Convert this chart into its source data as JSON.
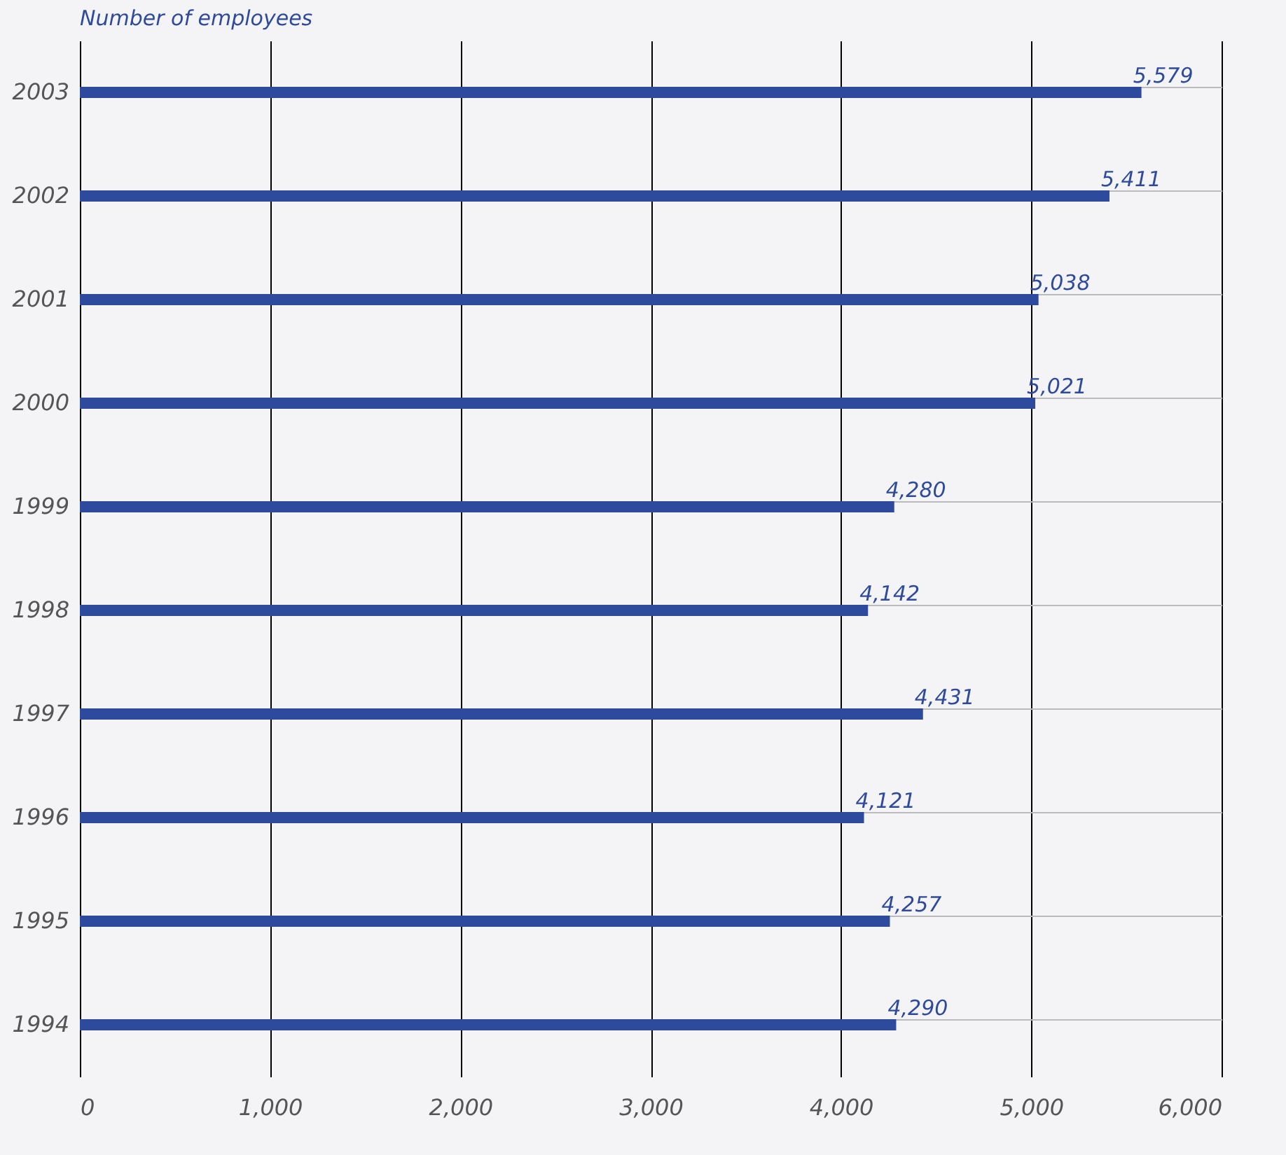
{
  "chart_data": {
    "type": "bar",
    "orientation": "horizontal",
    "title": "Number of employees",
    "categories": [
      "2003",
      "2002",
      "2001",
      "2000",
      "1999",
      "1998",
      "1997",
      "1996",
      "1995",
      "1994"
    ],
    "values": [
      5579,
      5411,
      5038,
      5021,
      4280,
      4142,
      4431,
      4121,
      4257,
      4290
    ],
    "color": "#2e4a9c",
    "xlim": [
      0,
      6000
    ],
    "xticks": [
      0,
      {
        "value": 1000,
        "label": "1,000"
      },
      {
        "value": 2000,
        "label": "2,000"
      },
      {
        "value": 3000,
        "label": "3,000"
      },
      {
        "value": 4000,
        "label": "4,000"
      },
      {
        "value": 5000,
        "label": "5,000"
      },
      {
        "value": 6000,
        "label": "6,000"
      }
    ],
    "value_labels": [
      "5,579",
      "5,411",
      "5,038",
      "5,021",
      "4,280",
      "4,142",
      "4,431",
      "4,121",
      "4,257",
      "4,290"
    ],
    "grid": "x"
  }
}
